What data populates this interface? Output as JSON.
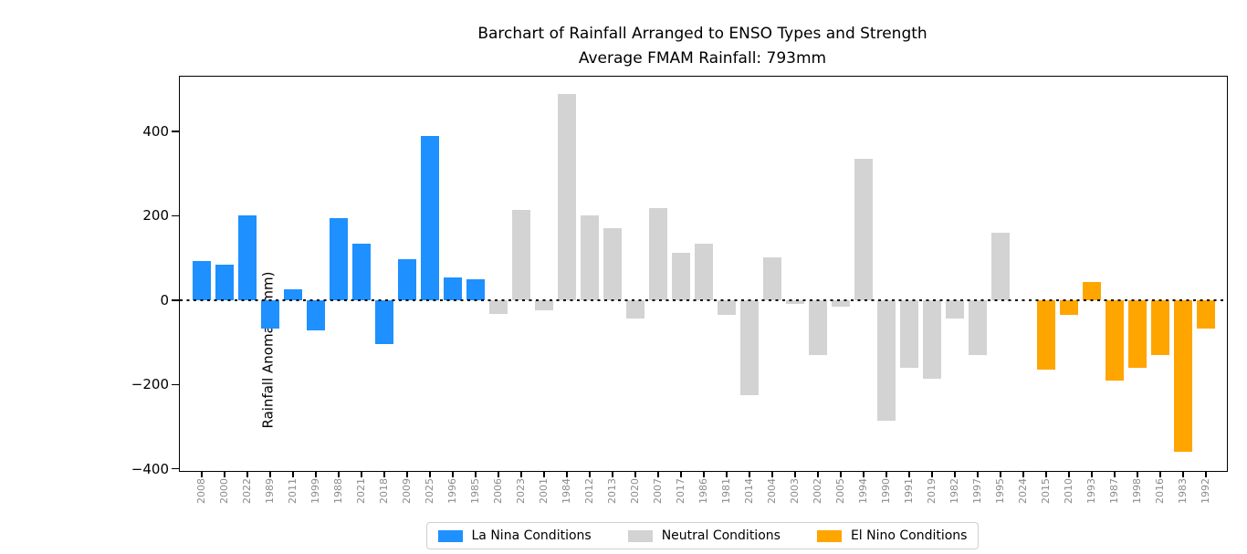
{
  "chart_data": {
    "type": "bar",
    "title": "Barchart of Rainfall Arranged to ENSO Types and Strength",
    "subtitle": "Average FMAM Rainfall: 793mm",
    "ylabel": "Rainfall Anomaly (mm)",
    "xlabel": "",
    "ylim": [
      -405,
      530
    ],
    "yticks": [
      400,
      200,
      0,
      -200,
      -400
    ],
    "zero_line": "dotted",
    "grid": false,
    "legend_position": "bottom-center",
    "categories": [
      "2008",
      "2000",
      "2022",
      "1989",
      "2011",
      "1999",
      "1988",
      "2021",
      "2018",
      "2009",
      "2025",
      "1996",
      "1985",
      "2006",
      "2023",
      "2001",
      "1984",
      "2012",
      "2013",
      "2020",
      "2007",
      "2017",
      "1986",
      "1981",
      "2014",
      "2004",
      "2003",
      "2002",
      "2005",
      "1994",
      "1990",
      "1991",
      "2019",
      "1982",
      "1997",
      "1995",
      "2024",
      "2015",
      "2010",
      "1993",
      "1987",
      "1998",
      "2016",
      "1983",
      "1992"
    ],
    "values": [
      92,
      85,
      200,
      -67,
      25,
      -71,
      195,
      133,
      -105,
      98,
      390,
      54,
      50,
      -33,
      213,
      -23,
      489,
      201,
      170,
      -43,
      218,
      113,
      133,
      -34,
      -226,
      102,
      -10,
      -131,
      -15,
      335,
      -287,
      -161,
      -187,
      -44,
      -131,
      160,
      0,
      -165,
      -35,
      42,
      -191,
      -160,
      -131,
      -360,
      -68
    ],
    "groups": [
      "la_nina",
      "la_nina",
      "la_nina",
      "la_nina",
      "la_nina",
      "la_nina",
      "la_nina",
      "la_nina",
      "la_nina",
      "la_nina",
      "la_nina",
      "la_nina",
      "la_nina",
      "neutral",
      "neutral",
      "neutral",
      "neutral",
      "neutral",
      "neutral",
      "neutral",
      "neutral",
      "neutral",
      "neutral",
      "neutral",
      "neutral",
      "neutral",
      "neutral",
      "neutral",
      "neutral",
      "neutral",
      "neutral",
      "neutral",
      "neutral",
      "neutral",
      "neutral",
      "neutral",
      "neutral",
      "el_nino",
      "el_nino",
      "el_nino",
      "el_nino",
      "el_nino",
      "el_nino",
      "el_nino",
      "el_nino"
    ],
    "group_colors": {
      "la_nina": "#1E90FF",
      "neutral": "#D3D3D3",
      "el_nino": "#FFA500"
    },
    "legend": [
      {
        "id": "la_nina",
        "label": "La Nina Conditions",
        "color": "#1E90FF"
      },
      {
        "id": "neutral",
        "label": "Neutral Conditions",
        "color": "#D3D3D3"
      },
      {
        "id": "el_nino",
        "label": "El Nino Conditions",
        "color": "#FFA500"
      }
    ]
  }
}
